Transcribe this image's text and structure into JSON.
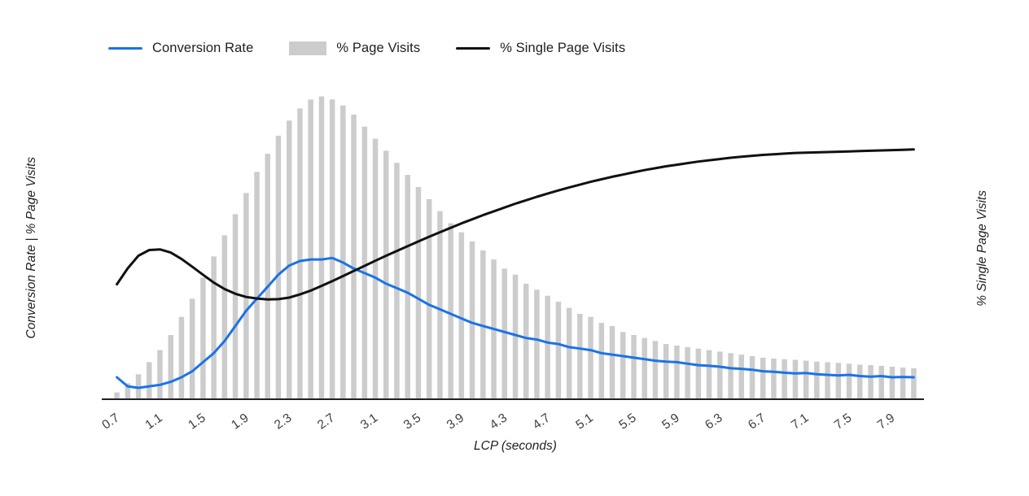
{
  "legend": {
    "items_note": "labels bound from chart_data.series names"
  },
  "chart_data": {
    "type": "combo",
    "title": "",
    "xlabel": "LCP (seconds)",
    "ylabel_left": "Conversion Rate | % Page Visits",
    "ylabel_right": "% Single Page Visits",
    "grid": false,
    "legend_position": "top-left",
    "x_domain": [
      0.62,
      8.18
    ],
    "left_max": 105,
    "right_max": 100,
    "x_ticks": [
      "0.7",
      "1.1",
      "1.5",
      "1.9",
      "2.3",
      "2.7",
      "3.1",
      "3.5",
      "3.9",
      "4.3",
      "4.7",
      "5.1",
      "5.5",
      "5.9",
      "6.3",
      "6.7",
      "7.1",
      "7.5",
      "7.9"
    ],
    "x": [
      0.7,
      0.8,
      0.9,
      1.0,
      1.1,
      1.2,
      1.3,
      1.4,
      1.5,
      1.6,
      1.7,
      1.8,
      1.9,
      2.0,
      2.1,
      2.2,
      2.3,
      2.4,
      2.5,
      2.6,
      2.7,
      2.8,
      2.9,
      3.0,
      3.1,
      3.2,
      3.3,
      3.4,
      3.5,
      3.6,
      3.7,
      3.8,
      3.9,
      4.0,
      4.1,
      4.2,
      4.3,
      4.4,
      4.5,
      4.6,
      4.7,
      4.8,
      4.9,
      5.0,
      5.1,
      5.2,
      5.3,
      5.4,
      5.5,
      5.6,
      5.7,
      5.8,
      5.9,
      6.0,
      6.1,
      6.2,
      6.3,
      6.4,
      6.5,
      6.6,
      6.7,
      6.8,
      6.9,
      7.0,
      7.1,
      7.2,
      7.3,
      7.4,
      7.5,
      7.6,
      7.7,
      7.8,
      7.9,
      8.0,
      8.1
    ],
    "series": [
      {
        "name": "Conversion Rate",
        "type": "line",
        "axis": "left",
        "color": "#1a73e8",
        "values": [
          7,
          4,
          3.5,
          4,
          4.5,
          5.5,
          7,
          9,
          12,
          15,
          19,
          24,
          29,
          33,
          37,
          41,
          44,
          45.5,
          46,
          46,
          46.5,
          45,
          43,
          41.5,
          40,
          38,
          36.5,
          35,
          33,
          31,
          29.5,
          28,
          26.5,
          25,
          24,
          23,
          22,
          21,
          20,
          19.5,
          18.5,
          18,
          17,
          16.5,
          16,
          15,
          14.5,
          14,
          13.5,
          13,
          12.5,
          12.2,
          12,
          11.5,
          11,
          10.8,
          10.5,
          10,
          9.8,
          9.5,
          9,
          8.8,
          8.5,
          8.3,
          8.4,
          8,
          7.8,
          7.6,
          7.8,
          7.4,
          7.2,
          7.4,
          7,
          7.1,
          7
        ]
      },
      {
        "name": "% Page Visits",
        "type": "bar",
        "axis": "left",
        "color": "#cccccc",
        "values": [
          2,
          5,
          8,
          12,
          16,
          21,
          27,
          33,
          40,
          47,
          54,
          61,
          68,
          75,
          81,
          87,
          92,
          96,
          99,
          100,
          99,
          97,
          94,
          90,
          86,
          82,
          78,
          74,
          70,
          66,
          62,
          58,
          55,
          52,
          49,
          46,
          43,
          41,
          38,
          36,
          34,
          32,
          30,
          28,
          27,
          25,
          24,
          22,
          21,
          20,
          19,
          18,
          17.5,
          17,
          16.5,
          16,
          15.5,
          15,
          14.5,
          14,
          13.5,
          13.2,
          13,
          12.8,
          12.5,
          12.2,
          12,
          11.8,
          11.5,
          11.2,
          11,
          10.8,
          10.5,
          10.2,
          10
        ]
      },
      {
        "name": "% Single Page Visits",
        "type": "line",
        "axis": "right",
        "color": "#111111",
        "values": [
          36,
          41,
          45,
          46.8,
          47,
          46,
          44,
          41.5,
          39,
          36.5,
          34.5,
          33,
          32,
          31.5,
          31.2,
          31.3,
          31.8,
          32.8,
          34,
          35.5,
          37,
          38.6,
          40.2,
          41.8,
          43.4,
          45,
          46.5,
          48,
          49.5,
          51,
          52.4,
          53.8,
          55.2,
          56.5,
          57.8,
          59,
          60.2,
          61.4,
          62.5,
          63.6,
          64.6,
          65.6,
          66.5,
          67.4,
          68.3,
          69.1,
          69.9,
          70.6,
          71.3,
          72,
          72.6,
          73.2,
          73.7,
          74.2,
          74.7,
          75.1,
          75.5,
          75.9,
          76.2,
          76.5,
          76.8,
          77,
          77.2,
          77.4,
          77.5,
          77.6,
          77.7,
          77.8,
          77.9,
          78,
          78.1,
          78.2,
          78.3,
          78.4,
          78.5
        ]
      }
    ],
    "style": {
      "axis_line_color": "#202124",
      "tick_label_color": "#3c4043",
      "tick_label_rotation_deg": -35
    }
  }
}
